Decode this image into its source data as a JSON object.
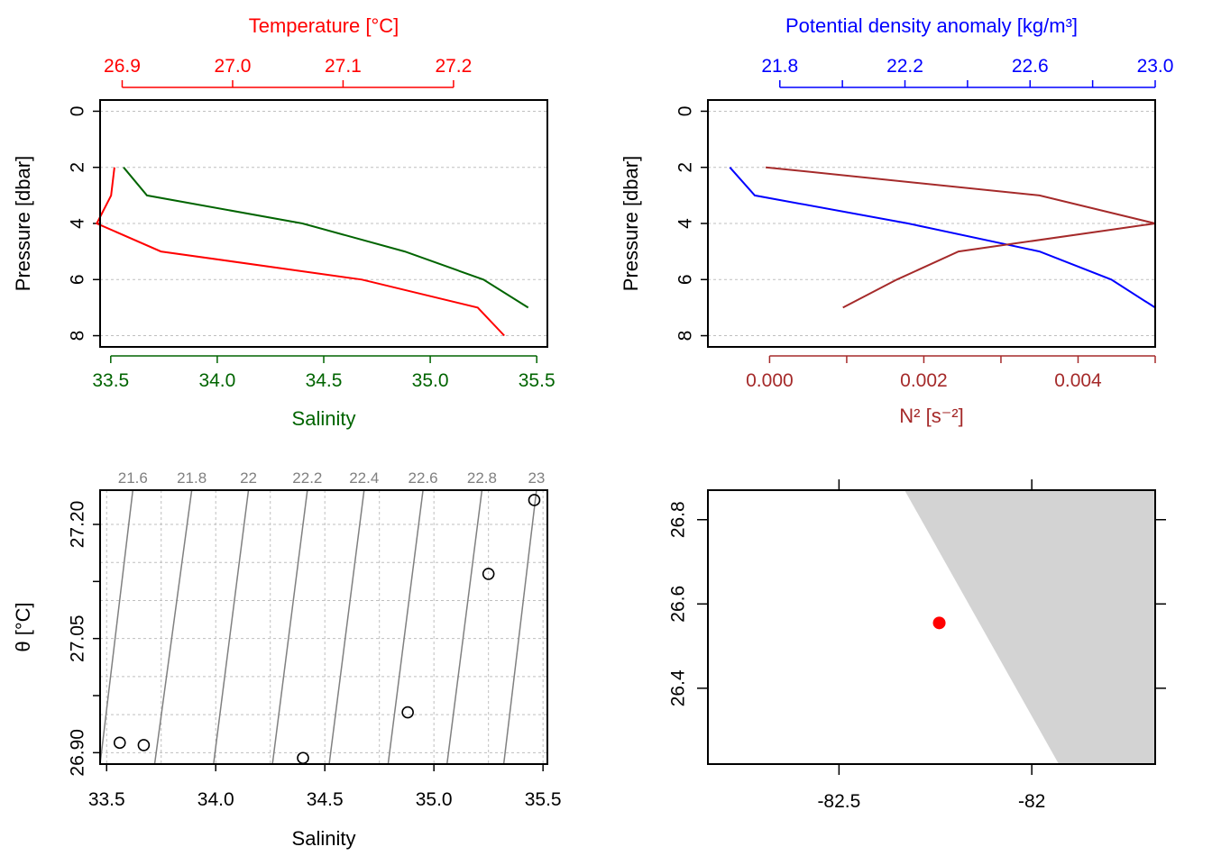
{
  "colors": {
    "salinity": "#006400",
    "temperature": "#ff0000",
    "density": "#0000ff",
    "n2": "#a52a2a",
    "grid": "#bfbfbf",
    "contour": "#808080",
    "land": "#d3d3d3",
    "station": "#ff0000",
    "axis": "#000000"
  },
  "chart_data": [
    {
      "id": "profile-salinity-temperature",
      "type": "line",
      "ylabel": "Pressure [dbar]",
      "ylim": [
        8.4,
        -0.4
      ],
      "y_ticks": [
        0,
        2,
        4,
        6,
        8
      ],
      "grid": true,
      "bottom_axis": {
        "label": "Salinity",
        "ticks": [
          "33.5",
          "34.0",
          "34.5",
          "35.0",
          "35.5"
        ],
        "tick_values": [
          33.5,
          34.0,
          34.5,
          35.0,
          35.5
        ],
        "range": [
          33.45,
          35.55
        ]
      },
      "top_axis": {
        "label": "Temperature [°C]",
        "ticks": [
          "26.9",
          "27.0",
          "27.1",
          "27.2"
        ],
        "tick_values": [
          26.9,
          27.0,
          27.1,
          27.2
        ],
        "range": [
          26.88,
          27.285
        ]
      },
      "series": [
        {
          "name": "Salinity",
          "axis": "bottom",
          "color": "#006400",
          "x": [
            33.56,
            33.67,
            34.4,
            34.88,
            35.25,
            35.46
          ],
          "y": [
            2,
            3,
            4,
            5,
            6,
            7
          ]
        },
        {
          "name": "Temperature [°C]",
          "axis": "top",
          "color": "#ff0000",
          "x": [
            26.893,
            26.89,
            26.877,
            26.935,
            27.117,
            27.222,
            27.246
          ],
          "y": [
            2,
            3,
            4,
            5,
            6,
            7,
            8
          ]
        }
      ]
    },
    {
      "id": "profile-density-n2",
      "type": "line",
      "ylabel": "Pressure [dbar]",
      "ylim": [
        8.4,
        -0.4
      ],
      "y_ticks": [
        0,
        2,
        4,
        6,
        8
      ],
      "grid": true,
      "top_axis": {
        "label": "Potential density anomaly [kg/m³]",
        "ticks": [
          "21.8",
          "22.2",
          "22.6",
          "23.0"
        ],
        "tick_values": [
          21.8,
          22.2,
          22.6,
          23.0
        ],
        "minor_tick_values": [
          22.0,
          22.4,
          22.8
        ],
        "range": [
          21.57,
          23.0
        ]
      },
      "bottom_axis": {
        "label": "N² [s⁻²]",
        "ticks": [
          "0.000",
          "0.002",
          "0.004"
        ],
        "tick_values": [
          0.0,
          0.002,
          0.004
        ],
        "minor_tick_values": [
          0.001,
          0.003,
          0.005
        ],
        "range": [
          -0.0008,
          0.005
        ]
      },
      "series": [
        {
          "name": "Potential density anomaly [kg/m³]",
          "axis": "top",
          "color": "#0000ff",
          "x": [
            21.64,
            21.72,
            22.21,
            22.63,
            22.86,
            23.0
          ],
          "y": [
            2,
            3,
            4,
            5,
            6,
            7
          ]
        },
        {
          "name": "N² [s⁻²]",
          "axis": "bottom",
          "color": "#a52a2a",
          "x": [
            -5e-05,
            0.0035,
            0.005,
            0.00245,
            0.00165,
            0.00095
          ],
          "y": [
            2,
            3,
            4,
            5,
            6,
            7
          ]
        }
      ]
    },
    {
      "id": "ts-diagram",
      "type": "scatter",
      "xlabel": "Salinity",
      "ylabel": "θ [°C]",
      "xlim": [
        33.47,
        35.52
      ],
      "ylim": [
        26.885,
        27.245
      ],
      "x_ticks": [
        "33.5",
        "34.0",
        "34.5",
        "35.0",
        "35.5"
      ],
      "x_tick_values": [
        33.5,
        34.0,
        34.5,
        35.0,
        35.5
      ],
      "y_ticks": [
        "26.90",
        "27.05",
        "27.20"
      ],
      "y_tick_values": [
        26.9,
        27.05,
        27.2
      ],
      "y_minor_tick_values": [
        26.975,
        27.125
      ],
      "y_grid_values": [
        26.9,
        26.95,
        27.0,
        27.05,
        27.1,
        27.15,
        27.2
      ],
      "x_grid_values": [
        33.5,
        33.75,
        34.0,
        34.25,
        34.5,
        34.75,
        35.0,
        35.25,
        35.5
      ],
      "grid": true,
      "isopycnals": {
        "labels": [
          "21.6",
          "21.8",
          "22",
          "22.2",
          "22.4",
          "22.6",
          "22.8",
          "23"
        ],
        "label_x": [
          33.62,
          33.89,
          34.15,
          34.42,
          34.68,
          34.95,
          35.22,
          35.47
        ],
        "bottom_x": [
          33.47,
          33.72,
          33.99,
          34.26,
          34.52,
          34.79,
          35.06,
          35.32
        ]
      },
      "points": {
        "x": [
          33.56,
          33.67,
          34.4,
          34.88,
          35.25,
          35.46
        ],
        "y": [
          26.913,
          26.91,
          26.893,
          26.953,
          27.135,
          27.232
        ]
      }
    },
    {
      "id": "station-map",
      "type": "map",
      "xlim": [
        -82.84,
        -81.68
      ],
      "ylim": [
        26.22,
        26.87
      ],
      "x_ticks": [
        "-82.5",
        "-82"
      ],
      "x_tick_values": [
        -82.5,
        -82.0
      ],
      "y_ticks": [
        "26.4",
        "26.6",
        "26.8"
      ],
      "y_tick_values": [
        26.4,
        26.6,
        26.8
      ],
      "land_polygon": [
        [
          -82.33,
          26.87
        ],
        [
          -81.68,
          26.87
        ],
        [
          -81.68,
          26.22
        ],
        [
          -81.93,
          26.22
        ]
      ],
      "station": {
        "lon": -82.24,
        "lat": 26.555
      }
    }
  ]
}
